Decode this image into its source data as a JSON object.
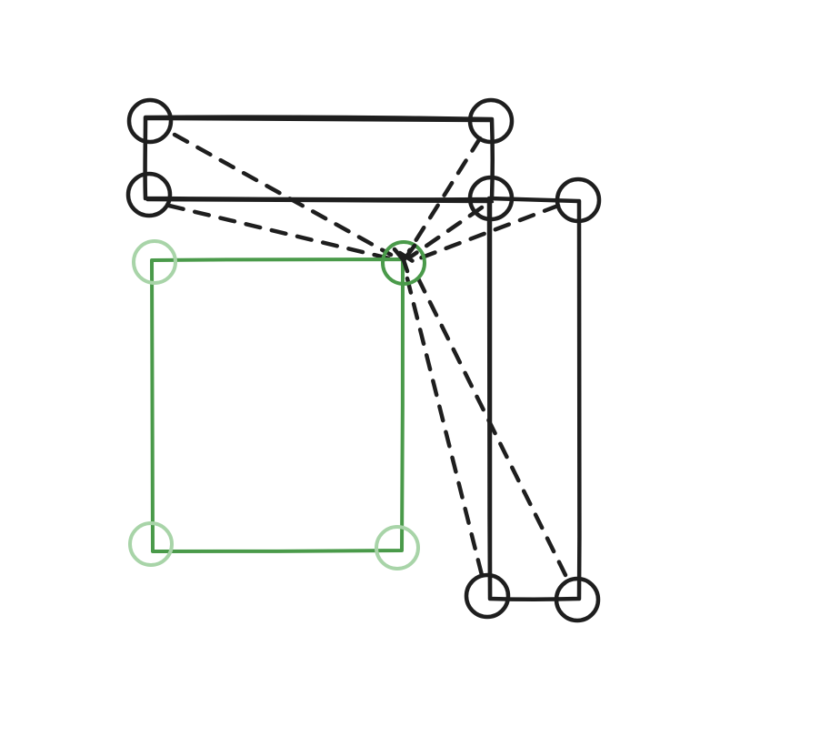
{
  "colors": {
    "background": "#ffffff",
    "ink": "#1e1e1e",
    "selected": "#4a9a4a",
    "selected_handle": "#a8d4a8"
  },
  "shapes": [
    {
      "name": "wide-rectangle",
      "role": "reference-shape",
      "state": "static"
    },
    {
      "name": "tall-rectangle",
      "role": "reference-shape",
      "state": "static"
    },
    {
      "name": "selected-rectangle",
      "role": "dragged-shape",
      "state": "selected"
    }
  ],
  "guides": {
    "style": "dashed",
    "count": 8
  }
}
